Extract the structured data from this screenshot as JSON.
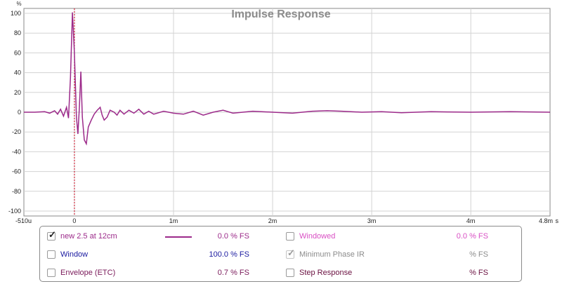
{
  "plot": {
    "title": "Impulse Response",
    "y_unit": "%",
    "x_unit_suffix": "s",
    "x_tick_labels": [
      "-510u",
      "0",
      "1m",
      "2m",
      "3m",
      "4m",
      "4.8m"
    ],
    "y_tick_labels": [
      "100",
      "80",
      "60",
      "40",
      "20",
      "0",
      "-20",
      "-40",
      "-60",
      "-80",
      "-100"
    ],
    "colors": {
      "trace": "#9c2a8a",
      "marker": "#d0021b",
      "grid": "#d3d3d3",
      "title": "#8c8c8c"
    }
  },
  "chart_data": {
    "type": "line",
    "title": "Impulse Response",
    "xlabel": "",
    "ylabel": "%",
    "xlim": [
      -0.51,
      4.8
    ],
    "x_units": "ms",
    "ylim": [
      -105,
      105
    ],
    "grid": true,
    "marker_x": 0,
    "series": [
      {
        "name": "new 2.5 at 12cm",
        "x": [
          -0.51,
          -0.4,
          -0.3,
          -0.25,
          -0.2,
          -0.17,
          -0.14,
          -0.11,
          -0.08,
          -0.06,
          -0.04,
          -0.02,
          0.0,
          0.02,
          0.035,
          0.05,
          0.065,
          0.08,
          0.1,
          0.12,
          0.14,
          0.17,
          0.2,
          0.23,
          0.26,
          0.28,
          0.3,
          0.33,
          0.36,
          0.4,
          0.43,
          0.46,
          0.5,
          0.55,
          0.6,
          0.65,
          0.7,
          0.75,
          0.8,
          0.9,
          1.0,
          1.1,
          1.2,
          1.3,
          1.4,
          1.5,
          1.6,
          1.8,
          2.0,
          2.2,
          2.4,
          2.55,
          2.7,
          2.9,
          3.1,
          3.3,
          3.6,
          4.0,
          4.4,
          4.8
        ],
        "y": [
          0,
          0,
          0.5,
          -1,
          1.5,
          -2,
          3,
          -4,
          5,
          -6,
          35,
          101,
          60,
          -5,
          -22,
          5,
          41,
          -5,
          -28,
          -32,
          -15,
          -8,
          -2,
          2,
          5,
          -3,
          -8,
          -5,
          2,
          0,
          -3,
          2,
          -2,
          2,
          -1,
          3,
          -2,
          1,
          -2,
          1,
          -1,
          -2,
          1,
          -3,
          0,
          2,
          -1,
          1,
          0,
          -1,
          1,
          1.5,
          1,
          0,
          0.5,
          -0.5,
          0.5,
          0,
          0.5,
          0
        ]
      }
    ]
  },
  "legend": {
    "rows": [
      {
        "label": "new 2.5 at 12cm",
        "checked": true,
        "value": "0.0 % FS",
        "color": "#9c2a8a"
      },
      {
        "label": "Window",
        "checked": false,
        "value": "100.0 % FS",
        "color": "#1a1aa0"
      },
      {
        "label": "Envelope (ETC)",
        "checked": false,
        "value": "0.7 % FS",
        "color": "#7a1a5a"
      },
      {
        "label": "Windowed",
        "checked": false,
        "value": "0.0 % FS",
        "color": "#d94fc4"
      },
      {
        "label": "Minimum Phase IR",
        "checked": true,
        "value": "% FS",
        "color": "#8c8c8c"
      },
      {
        "label": "Step Response",
        "checked": false,
        "value": "% FS",
        "color": "#6a1040"
      }
    ]
  }
}
